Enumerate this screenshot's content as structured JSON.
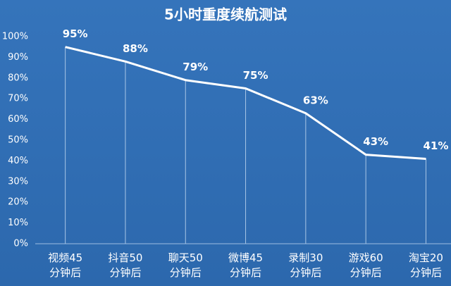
{
  "chart_data": {
    "type": "line",
    "title": "5小时重度续航测试",
    "categories": [
      [
        "视频45",
        "分钟后"
      ],
      [
        "抖音50",
        "分钟后"
      ],
      [
        "聊天50",
        "分钟后"
      ],
      [
        "微博45",
        "分钟后"
      ],
      [
        "录制30",
        "分钟后"
      ],
      [
        "游戏60",
        "分钟后"
      ],
      [
        "淘宝20",
        "分钟后"
      ]
    ],
    "values": [
      95,
      88,
      79,
      75,
      63,
      43,
      41
    ],
    "value_labels": [
      "95%",
      "88%",
      "79%",
      "75%",
      "63%",
      "43%",
      "41%"
    ],
    "color": "#ffffff",
    "ylim": [
      0,
      100
    ],
    "yticks": [
      {
        "value": 0,
        "label": "0%"
      },
      {
        "value": 10,
        "label": "10%"
      },
      {
        "value": 20,
        "label": "20%"
      },
      {
        "value": 30,
        "label": "30%"
      },
      {
        "value": 40,
        "label": "40%"
      },
      {
        "value": 50,
        "label": "50%"
      },
      {
        "value": 60,
        "label": "60%"
      },
      {
        "value": 70,
        "label": "70%"
      },
      {
        "value": 80,
        "label": "80%"
      },
      {
        "value": 90,
        "label": "90%"
      },
      {
        "value": 100,
        "label": "100%"
      }
    ],
    "grid": false
  }
}
